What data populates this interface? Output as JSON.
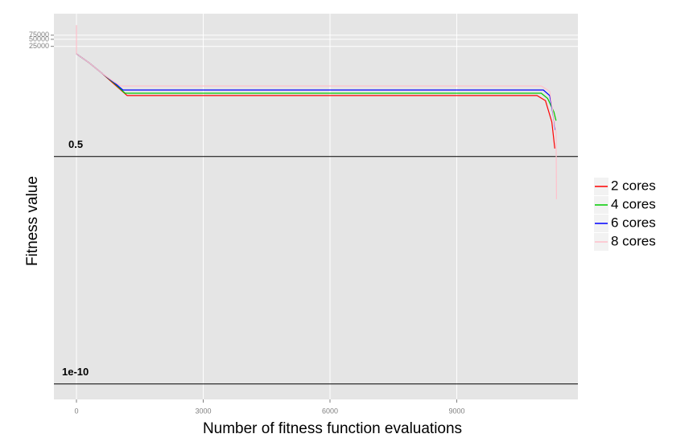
{
  "chart_data": {
    "type": "line",
    "x_label": "Number of fitness function evaluations",
    "y_label": "Fitness value",
    "xlim": [
      -533,
      11867
    ],
    "xticks": [
      0,
      3000,
      6000,
      9000
    ],
    "ylim": [
      2.2e-11,
      620000
    ],
    "yticks": [
      25000,
      50000,
      75000
    ],
    "log_y": true,
    "grid": true,
    "legend_position": "right",
    "annotations": [
      {
        "value": 0.5,
        "label": "0.5"
      },
      {
        "value": 1e-10,
        "label": "1e-10"
      }
    ],
    "series": [
      {
        "name": "2 cores",
        "color": "#ff0000",
        "x": [
          0,
          300,
          600,
          900,
          1200,
          10900,
          11100,
          11250,
          11320
        ],
        "values": [
          12000,
          5000,
          1800,
          600,
          200,
          200,
          120,
          15,
          1.1
        ]
      },
      {
        "name": "4 cores",
        "color": "#00cc00",
        "x": [
          0,
          300,
          600,
          900,
          1150,
          11000,
          11150,
          11300,
          11350
        ],
        "values": [
          12000,
          5000,
          1800,
          650,
          250,
          250,
          150,
          40,
          17
        ]
      },
      {
        "name": "6 cores",
        "color": "#0000ff",
        "x": [
          0,
          300,
          600,
          900,
          1100,
          11050,
          11200,
          11300,
          11330
        ],
        "values": [
          12000,
          5000,
          1800,
          700,
          345,
          345,
          200,
          20,
          6.8
        ]
      },
      {
        "name": "8 cores",
        "color": "#ffc0cb",
        "x": [
          0,
          0,
          300,
          600,
          900,
          1050,
          11000,
          11200,
          11350,
          11360
        ],
        "values": [
          200000,
          12000,
          5000,
          1800,
          750,
          510,
          510,
          300,
          5,
          0.0076
        ]
      }
    ]
  }
}
